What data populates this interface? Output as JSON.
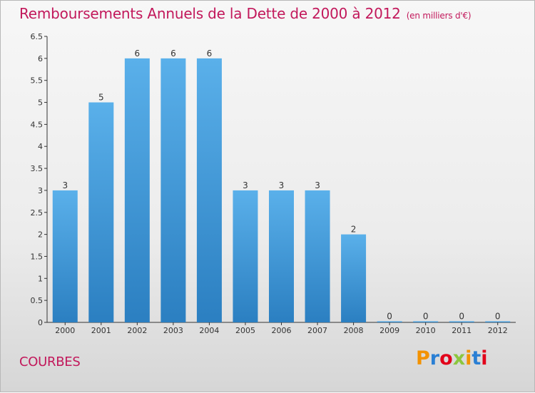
{
  "title": "Remboursements Annuels de la Dette de 2000 à 2012",
  "title_unit": "(en milliers d'€)",
  "commune": "COURBES",
  "logo": {
    "text": "Proxiti",
    "letter_colors": [
      "#f39200",
      "#2a7fd4",
      "#e2001a",
      "#8cc63e",
      "#f39200",
      "#2a7fd4",
      "#e2001a"
    ]
  },
  "colors": {
    "bar_top": "#5ab0ea",
    "bar_bottom": "#2b7fc1",
    "title": "#c2185b",
    "axis": "#333333"
  },
  "chart_data": {
    "type": "bar",
    "categories": [
      "2000",
      "2001",
      "2002",
      "2003",
      "2004",
      "2005",
      "2006",
      "2007",
      "2008",
      "2009",
      "2010",
      "2011",
      "2012"
    ],
    "values": [
      3,
      5,
      6,
      6,
      6,
      3,
      3,
      3,
      2,
      0,
      0,
      0,
      0
    ],
    "data_labels": [
      "3",
      "5",
      "6",
      "6",
      "6",
      "3",
      "3",
      "3",
      "2",
      "0",
      "0",
      "0",
      "0"
    ],
    "y_ticks": [
      "0",
      "0.5",
      "1",
      "1.5",
      "2",
      "2.5",
      "3",
      "3.5",
      "4",
      "4.5",
      "5",
      "5.5",
      "6",
      "6.5"
    ],
    "ylim": [
      0,
      6.5
    ],
    "grid": false,
    "legend": "none"
  }
}
